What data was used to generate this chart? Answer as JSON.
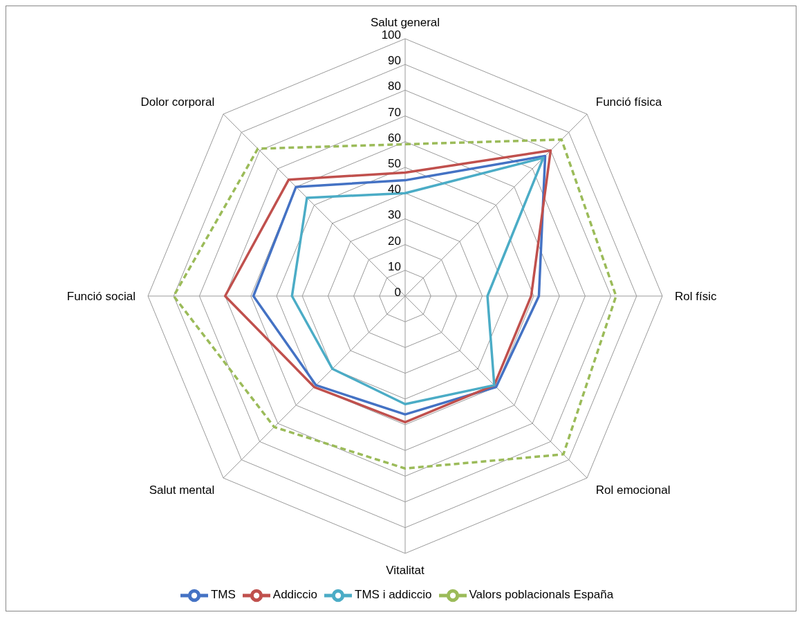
{
  "chart_data": {
    "type": "radar",
    "categories": [
      "Salut general",
      "Funció física",
      "Rol físic",
      "Rol emocional",
      "Vitalitat",
      "Salut mental",
      "Funció social",
      "Dolor corporal"
    ],
    "series": [
      {
        "name": "TMS",
        "color": "#4472c4",
        "values": [
          45,
          77,
          52,
          50,
          46,
          49,
          59,
          60
        ]
      },
      {
        "name": "Addiccio",
        "color": "#c0504d",
        "values": [
          48,
          80,
          49,
          49,
          49,
          50,
          70,
          64
        ]
      },
      {
        "name": "TMS i addiccio",
        "color": "#4bacc6",
        "values": [
          40,
          76,
          32,
          49,
          42,
          40,
          44,
          54
        ]
      },
      {
        "name": "Valors poblacionals España",
        "color": "#9bbb59",
        "values": [
          59,
          86,
          82,
          87,
          67,
          72,
          90,
          81
        ],
        "line_style": "dashed"
      }
    ],
    "ylim": [
      0,
      100
    ],
    "yticks": [
      0,
      10,
      20,
      30,
      40,
      50,
      60,
      70,
      80,
      90,
      100
    ],
    "grid": true,
    "legend": "bottom",
    "marker": "none"
  }
}
